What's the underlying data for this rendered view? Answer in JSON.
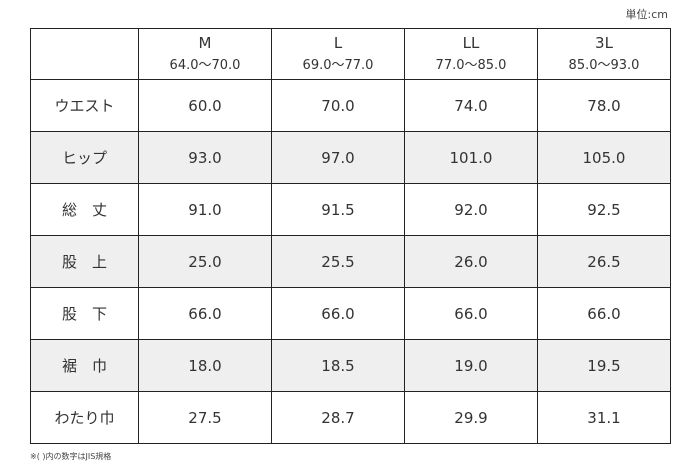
{
  "unit_label": "単位:cm",
  "columns": [
    {
      "size": "M",
      "range": "64.0～70.0"
    },
    {
      "size": "L",
      "range": "69.0～77.0"
    },
    {
      "size": "LL",
      "range": "77.0～85.0"
    },
    {
      "size": "3L",
      "range": "85.0～93.0"
    }
  ],
  "rows": [
    {
      "label": "ウエスト",
      "values": [
        "60.0",
        "70.0",
        "74.0",
        "78.0"
      ]
    },
    {
      "label": "ヒップ",
      "values": [
        "93.0",
        "97.0",
        "101.0",
        "105.0"
      ]
    },
    {
      "label": "総　丈",
      "values": [
        "91.0",
        "91.5",
        "92.0",
        "92.5"
      ]
    },
    {
      "label": "股　上",
      "values": [
        "25.0",
        "25.5",
        "26.0",
        "26.5"
      ]
    },
    {
      "label": "股　下",
      "values": [
        "66.0",
        "66.0",
        "66.0",
        "66.0"
      ]
    },
    {
      "label": "裾　巾",
      "values": [
        "18.0",
        "18.5",
        "19.0",
        "19.5"
      ]
    },
    {
      "label": "わたり巾",
      "values": [
        "27.5",
        "28.7",
        "29.9",
        "31.1"
      ]
    }
  ],
  "footnote": "※( )内の数字はJIS規格",
  "colors": {
    "border": "#222222",
    "shaded_row": "#efefef",
    "text": "#333333"
  }
}
